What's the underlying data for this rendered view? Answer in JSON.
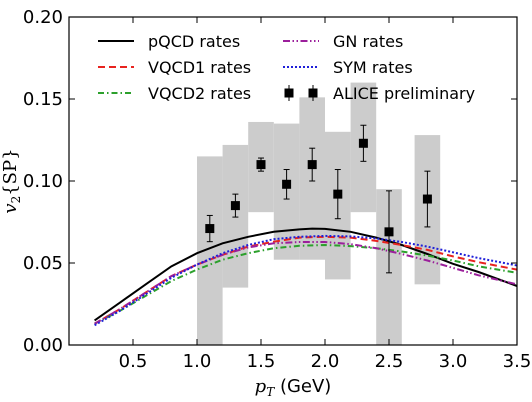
{
  "chart_data": {
    "type": "scatter",
    "xlabel": "p_T (GeV)",
    "ylabel": "v_2{SP}",
    "xlim": [
      0.0,
      3.5
    ],
    "ylim": [
      0.0,
      0.2
    ],
    "x_ticks": [
      {
        "value": 0.5,
        "label": "0.5"
      },
      {
        "value": 1.0,
        "label": "1.0"
      },
      {
        "value": 1.5,
        "label": "1.5"
      },
      {
        "value": 2.0,
        "label": "2.0"
      },
      {
        "value": 2.5,
        "label": "2.5"
      },
      {
        "value": 3.0,
        "label": "3.0"
      },
      {
        "value": 3.5,
        "label": "3.5"
      }
    ],
    "y_ticks": [
      {
        "value": 0.0,
        "label": "0.00"
      },
      {
        "value": 0.05,
        "label": "0.05"
      },
      {
        "value": 0.1,
        "label": "0.10"
      },
      {
        "value": 0.15,
        "label": "0.15"
      },
      {
        "value": 0.2,
        "label": "0.20"
      }
    ],
    "grid": false,
    "legend_position": "top",
    "series": [
      {
        "name": "pQCD rates",
        "kind": "line",
        "color": "#000000",
        "dash": "solid",
        "x": [
          0.2,
          0.4,
          0.6,
          0.8,
          1.0,
          1.2,
          1.4,
          1.6,
          1.8,
          1.9,
          2.0,
          2.2,
          2.4,
          2.6,
          2.8,
          3.0,
          3.2,
          3.5
        ],
        "y": [
          0.015,
          0.026,
          0.037,
          0.048,
          0.056,
          0.062,
          0.066,
          0.069,
          0.0705,
          0.071,
          0.0708,
          0.069,
          0.0655,
          0.061,
          0.0555,
          0.0495,
          0.0445,
          0.036
        ]
      },
      {
        "name": "VQCD1 rates",
        "kind": "line",
        "color": "#e8231f",
        "dash": "dashed",
        "x": [
          0.2,
          0.4,
          0.6,
          0.8,
          1.0,
          1.2,
          1.4,
          1.6,
          1.8,
          2.0,
          2.2,
          2.4,
          2.6,
          2.8,
          3.0,
          3.2,
          3.5
        ],
        "y": [
          0.013,
          0.022,
          0.032,
          0.042,
          0.049,
          0.055,
          0.06,
          0.063,
          0.0655,
          0.066,
          0.0655,
          0.0635,
          0.061,
          0.058,
          0.054,
          0.0505,
          0.046
        ]
      },
      {
        "name": "VQCD2 rates",
        "kind": "line",
        "color": "#2ca02c",
        "dash": "dashdot",
        "x": [
          0.2,
          0.4,
          0.6,
          0.8,
          1.0,
          1.2,
          1.4,
          1.6,
          1.8,
          2.0,
          2.2,
          2.4,
          2.6,
          2.8,
          3.0,
          3.2,
          3.5
        ],
        "y": [
          0.013,
          0.021,
          0.03,
          0.039,
          0.046,
          0.052,
          0.056,
          0.059,
          0.0605,
          0.061,
          0.0603,
          0.059,
          0.057,
          0.0545,
          0.0515,
          0.048,
          0.044
        ]
      },
      {
        "name": "GN rates",
        "kind": "line",
        "color": "#9b1f9b",
        "dash": "dashdotdot",
        "x": [
          0.2,
          0.4,
          0.6,
          0.8,
          1.0,
          1.2,
          1.4,
          1.6,
          1.8,
          2.0,
          2.2,
          2.4,
          2.6,
          2.8,
          3.0,
          3.2,
          3.5
        ],
        "y": [
          0.013,
          0.022,
          0.032,
          0.042,
          0.049,
          0.055,
          0.0595,
          0.062,
          0.0628,
          0.0628,
          0.0615,
          0.059,
          0.0555,
          0.0515,
          0.047,
          0.0425,
          0.037
        ]
      },
      {
        "name": "SYM rates",
        "kind": "line",
        "color": "#1f1fd9",
        "dash": "dotted",
        "x": [
          0.2,
          0.4,
          0.6,
          0.8,
          1.0,
          1.2,
          1.4,
          1.6,
          1.8,
          2.0,
          2.2,
          2.4,
          2.6,
          2.8,
          3.0,
          3.2,
          3.5
        ],
        "y": [
          0.012,
          0.021,
          0.031,
          0.041,
          0.049,
          0.056,
          0.061,
          0.0645,
          0.066,
          0.0665,
          0.0662,
          0.065,
          0.0628,
          0.06,
          0.0565,
          0.053,
          0.0485
        ]
      },
      {
        "name": "ALICE preliminary",
        "kind": "points",
        "color": "#000000",
        "x": [
          1.1,
          1.3,
          1.5,
          1.7,
          1.9,
          2.1,
          2.3,
          2.5,
          2.8
        ],
        "y": [
          0.071,
          0.085,
          0.11,
          0.098,
          0.11,
          0.092,
          0.123,
          0.069,
          0.089
        ],
        "stat_err": [
          0.008,
          0.007,
          0.004,
          0.009,
          0.01,
          0.015,
          0.011,
          0.025,
          0.017
        ],
        "sys_low": [
          0.0,
          0.035,
          0.081,
          0.052,
          0.052,
          0.04,
          0.081,
          0.0,
          0.037
        ],
        "sys_high": [
          0.115,
          0.122,
          0.136,
          0.135,
          0.151,
          0.13,
          0.16,
          0.095,
          0.128
        ],
        "sys_halfwidth": [
          0.1,
          0.1,
          0.1,
          0.1,
          0.1,
          0.1,
          0.1,
          0.1,
          0.1
        ],
        "sys_color": "#cccccc"
      }
    ],
    "legend_order": [
      "pQCD rates",
      "VQCD1 rates",
      "VQCD2 rates",
      "GN rates",
      "SYM rates",
      "ALICE preliminary"
    ]
  }
}
